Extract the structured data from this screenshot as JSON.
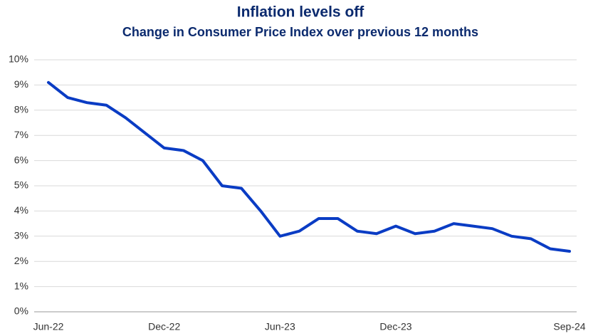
{
  "chart_data": {
    "type": "line",
    "title": "Inflation levels off",
    "subtitle": "Change in Consumer Price Index over previous 12 months",
    "categories": [
      "Jun-22",
      null,
      null,
      null,
      null,
      null,
      "Dec-22",
      null,
      null,
      null,
      null,
      null,
      "Jun-23",
      null,
      null,
      null,
      null,
      null,
      "Dec-23",
      null,
      null,
      null,
      null,
      null,
      null,
      null,
      null,
      "Sep-24"
    ],
    "series": [
      {
        "color": "#0a3cc4",
        "values": [
          9.1,
          8.5,
          8.3,
          8.2,
          7.7,
          7.1,
          6.5,
          6.4,
          6.0,
          5.0,
          4.9,
          4.0,
          3.0,
          3.2,
          3.7,
          3.7,
          3.2,
          3.1,
          3.4,
          3.1,
          3.2,
          3.5,
          3.4,
          3.3,
          3.0,
          2.9,
          2.5,
          2.4
        ]
      }
    ],
    "ylim": [
      0,
      10
    ],
    "yticks": [
      {
        "value": 0,
        "label": "0%"
      },
      {
        "value": 1,
        "label": "1%"
      },
      {
        "value": 2,
        "label": "2%"
      },
      {
        "value": 3,
        "label": "3%"
      },
      {
        "value": 4,
        "label": "4%"
      },
      {
        "value": 5,
        "label": "5%"
      },
      {
        "value": 6,
        "label": "6%"
      },
      {
        "value": 7,
        "label": "7%"
      },
      {
        "value": 8,
        "label": "8%"
      },
      {
        "value": 9,
        "label": "9%"
      },
      {
        "value": 10,
        "label": "10%"
      }
    ],
    "grid": true
  }
}
